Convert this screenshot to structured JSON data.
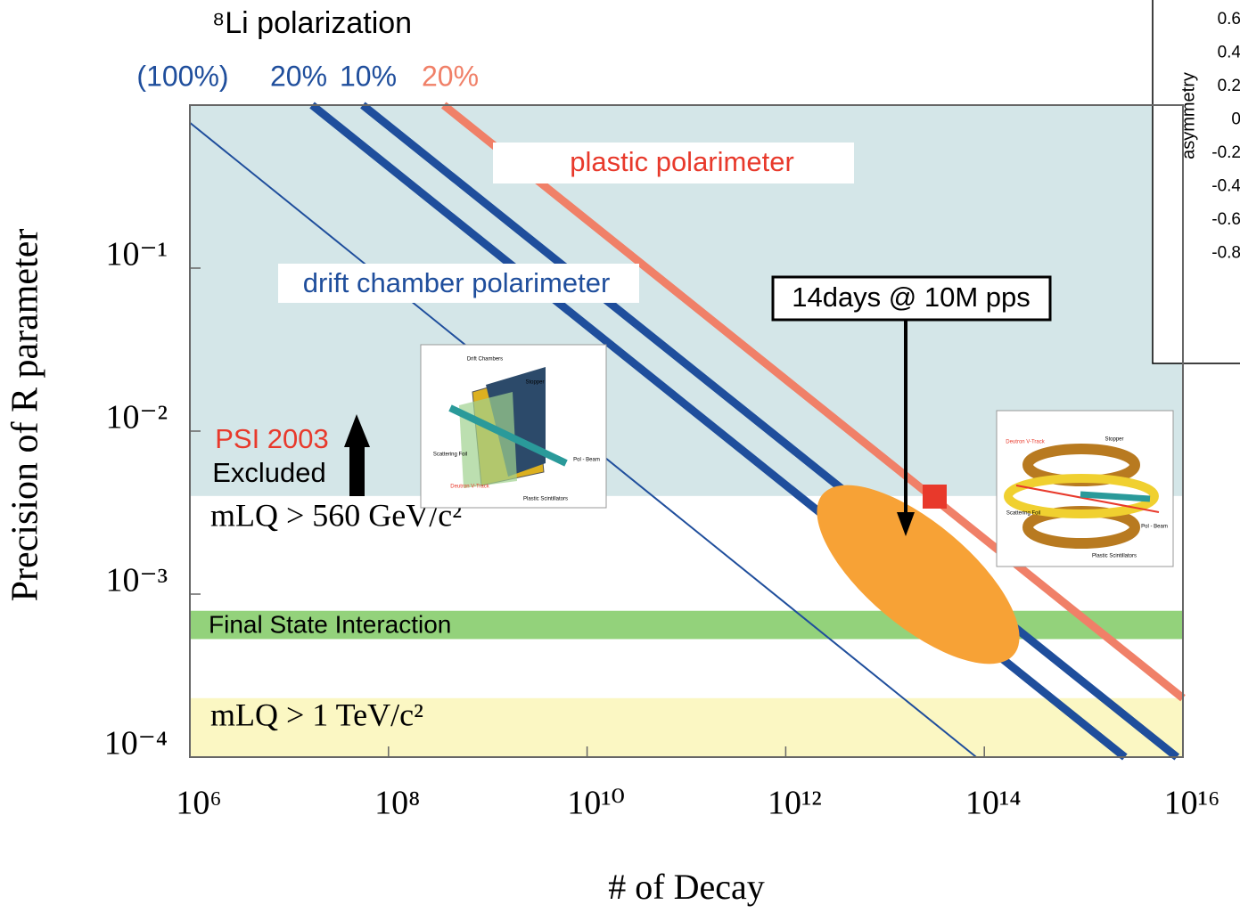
{
  "chart_data": {
    "type": "line",
    "title": "⁸Li polarization",
    "x_label": "# of Decay",
    "y_label": "Precision of R parameter",
    "log_x": true,
    "log_y": true,
    "xlim": [
      1000000,
      10000000000000000
    ],
    "ylim": [
      0.0001,
      1
    ],
    "xticks": [
      {
        "value": 1000000,
        "label": "10⁶"
      },
      {
        "value": 100000000,
        "label": "10⁸"
      },
      {
        "value": 10000000000,
        "label": "10¹⁰"
      },
      {
        "value": 1000000000000,
        "label": "10¹²"
      },
      {
        "value": 100000000000000,
        "label": "10¹⁴"
      },
      {
        "value": 10000000000000000,
        "label": "10¹⁶"
      }
    ],
    "yticks": [
      {
        "value": 0.0001,
        "label": "10⁻⁴"
      },
      {
        "value": 0.001,
        "label": "10⁻³"
      },
      {
        "value": 0.01,
        "label": "10⁻²"
      },
      {
        "value": 0.1,
        "label": "10⁻¹"
      }
    ],
    "series": [
      {
        "name": "(100%)",
        "color": "#1f4e9c",
        "x": [
          1000000,
          83000000000000
        ],
        "values": [
          0.78,
          0.0001
        ]
      },
      {
        "name": "20%",
        "color": "#1f4e9c",
        "x": [
          17000000,
          2600000000000000
        ],
        "values": [
          1,
          0.0001
        ]
      },
      {
        "name": "10%",
        "color": "#1f4e9c",
        "x": [
          55000000,
          8700000000000000
        ],
        "values": [
          1,
          0.0001
        ]
      },
      {
        "name": "20%",
        "color": "#f08068",
        "x": [
          360000000,
          10000000000000000
        ],
        "values": [
          1,
          0.00023
        ]
      }
    ],
    "regions": [
      {
        "from": 0.004,
        "to": 1,
        "color": "#d4e6e8"
      },
      {
        "from": 0.00053,
        "to": 0.00079,
        "color": "#93d27b"
      },
      {
        "from": 0.0001,
        "to": 0.00023,
        "color": "#fbf7c3"
      }
    ],
    "annotations": {
      "plastic": "plastic polarimeter",
      "drift": "drift chamber polarimeter",
      "beam": "14days @ 10M pps",
      "psi": "PSI 2003",
      "excluded": "Excluded",
      "mlq560": "mLQ > 560 GeV/c²",
      "fsi": "Final State Interaction",
      "mlq1": "mLQ > 1 TeV/c²"
    },
    "left_inset": {
      "labels": [
        "Drift Chambers",
        "Stopper",
        "Scattering Foil",
        "Pol - Beam",
        "Deutron V-Track",
        "Plastic Scintillators"
      ]
    },
    "right_inset": {
      "labels": [
        "Deutron V-Track",
        "Stopper",
        "Scattering Foil",
        "Pol - Beam",
        "Plastic Scintillators"
      ]
    },
    "asymmetry_inset": {
      "y_label": "asymmetry",
      "ticks": [
        "0.6",
        "0.4",
        "0.2",
        "0",
        "-0.2",
        "-0.4",
        "-0.6",
        "-0.8"
      ]
    }
  }
}
